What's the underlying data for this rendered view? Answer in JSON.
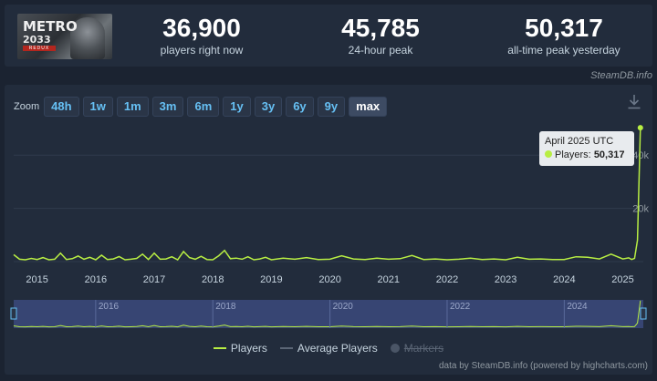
{
  "stats": [
    {
      "value": "36,900",
      "label": "players right now"
    },
    {
      "value": "45,785",
      "label": "24-hour peak"
    },
    {
      "value": "50,317",
      "label": "all-time peak yesterday"
    }
  ],
  "game_image_text": {
    "logo": "METRO",
    "sub": "2033",
    "redux": "REDUX"
  },
  "credit_top": "SteamDB.info",
  "zoom": {
    "label": "Zoom",
    "buttons": [
      "48h",
      "1w",
      "1m",
      "3m",
      "6m",
      "1y",
      "3y",
      "6y",
      "9y",
      "max"
    ],
    "active": "max"
  },
  "tooltip": {
    "title": "April 2025 UTC",
    "series": "Players:",
    "value": "50,317"
  },
  "legend": {
    "players": "Players",
    "average": "Average Players",
    "markers": "Markers"
  },
  "credit_bottom": "data by SteamDB.info (powered by highcharts.com)",
  "colors": {
    "players": "#b8ee43",
    "average": "#5b6676",
    "navigator": "#3b4a7c"
  },
  "chart_data": {
    "type": "line",
    "x_ticks": [
      "2015",
      "2016",
      "2017",
      "2018",
      "2019",
      "2020",
      "2021",
      "2022",
      "2023",
      "2024",
      "2025"
    ],
    "y_ticks": [
      "20k",
      "40k"
    ],
    "ylim": [
      0,
      50000
    ],
    "xlim": [
      2014.6,
      2025.35
    ],
    "navigator_ticks": [
      "2016",
      "2018",
      "2020",
      "2022",
      "2024"
    ],
    "series": [
      {
        "name": "Players",
        "x": [
          2014.6,
          2014.7,
          2014.8,
          2014.9,
          2015.0,
          2015.1,
          2015.2,
          2015.3,
          2015.4,
          2015.5,
          2015.6,
          2015.7,
          2015.8,
          2015.9,
          2016.0,
          2016.1,
          2016.2,
          2016.3,
          2016.4,
          2016.5,
          2016.6,
          2016.7,
          2016.8,
          2016.9,
          2017.0,
          2017.1,
          2017.2,
          2017.3,
          2017.4,
          2017.5,
          2017.6,
          2017.7,
          2017.8,
          2017.9,
          2018.0,
          2018.1,
          2018.2,
          2018.3,
          2018.4,
          2018.5,
          2018.6,
          2018.7,
          2018.8,
          2018.9,
          2019.0,
          2019.2,
          2019.4,
          2019.6,
          2019.8,
          2020.0,
          2020.2,
          2020.4,
          2020.6,
          2020.8,
          2021.0,
          2021.2,
          2021.4,
          2021.6,
          2021.8,
          2022.0,
          2022.2,
          2022.4,
          2022.6,
          2022.8,
          2023.0,
          2023.2,
          2023.4,
          2023.6,
          2023.8,
          2024.0,
          2024.2,
          2024.4,
          2024.6,
          2024.8,
          2025.0,
          2025.1,
          2025.15,
          2025.2,
          2025.25,
          2025.3
        ],
        "values": [
          2600,
          900,
          700,
          1200,
          800,
          1500,
          700,
          900,
          3200,
          800,
          1100,
          2100,
          900,
          1600,
          700,
          2400,
          800,
          1000,
          1900,
          700,
          900,
          1200,
          2800,
          800,
          3200,
          900,
          1000,
          1800,
          700,
          3800,
          1500,
          900,
          2000,
          800,
          700,
          2200,
          4200,
          1100,
          1300,
          900,
          1800,
          700,
          1000,
          1600,
          700,
          1300,
          900,
          1500,
          800,
          900,
          2200,
          1000,
          800,
          1300,
          900,
          1100,
          2300,
          800,
          1000,
          700,
          900,
          1300,
          800,
          1000,
          700,
          1600,
          900,
          1000,
          800,
          800,
          1800,
          1600,
          1000,
          2800,
          1000,
          1400,
          800,
          1200,
          8000,
          50317
        ]
      }
    ]
  }
}
